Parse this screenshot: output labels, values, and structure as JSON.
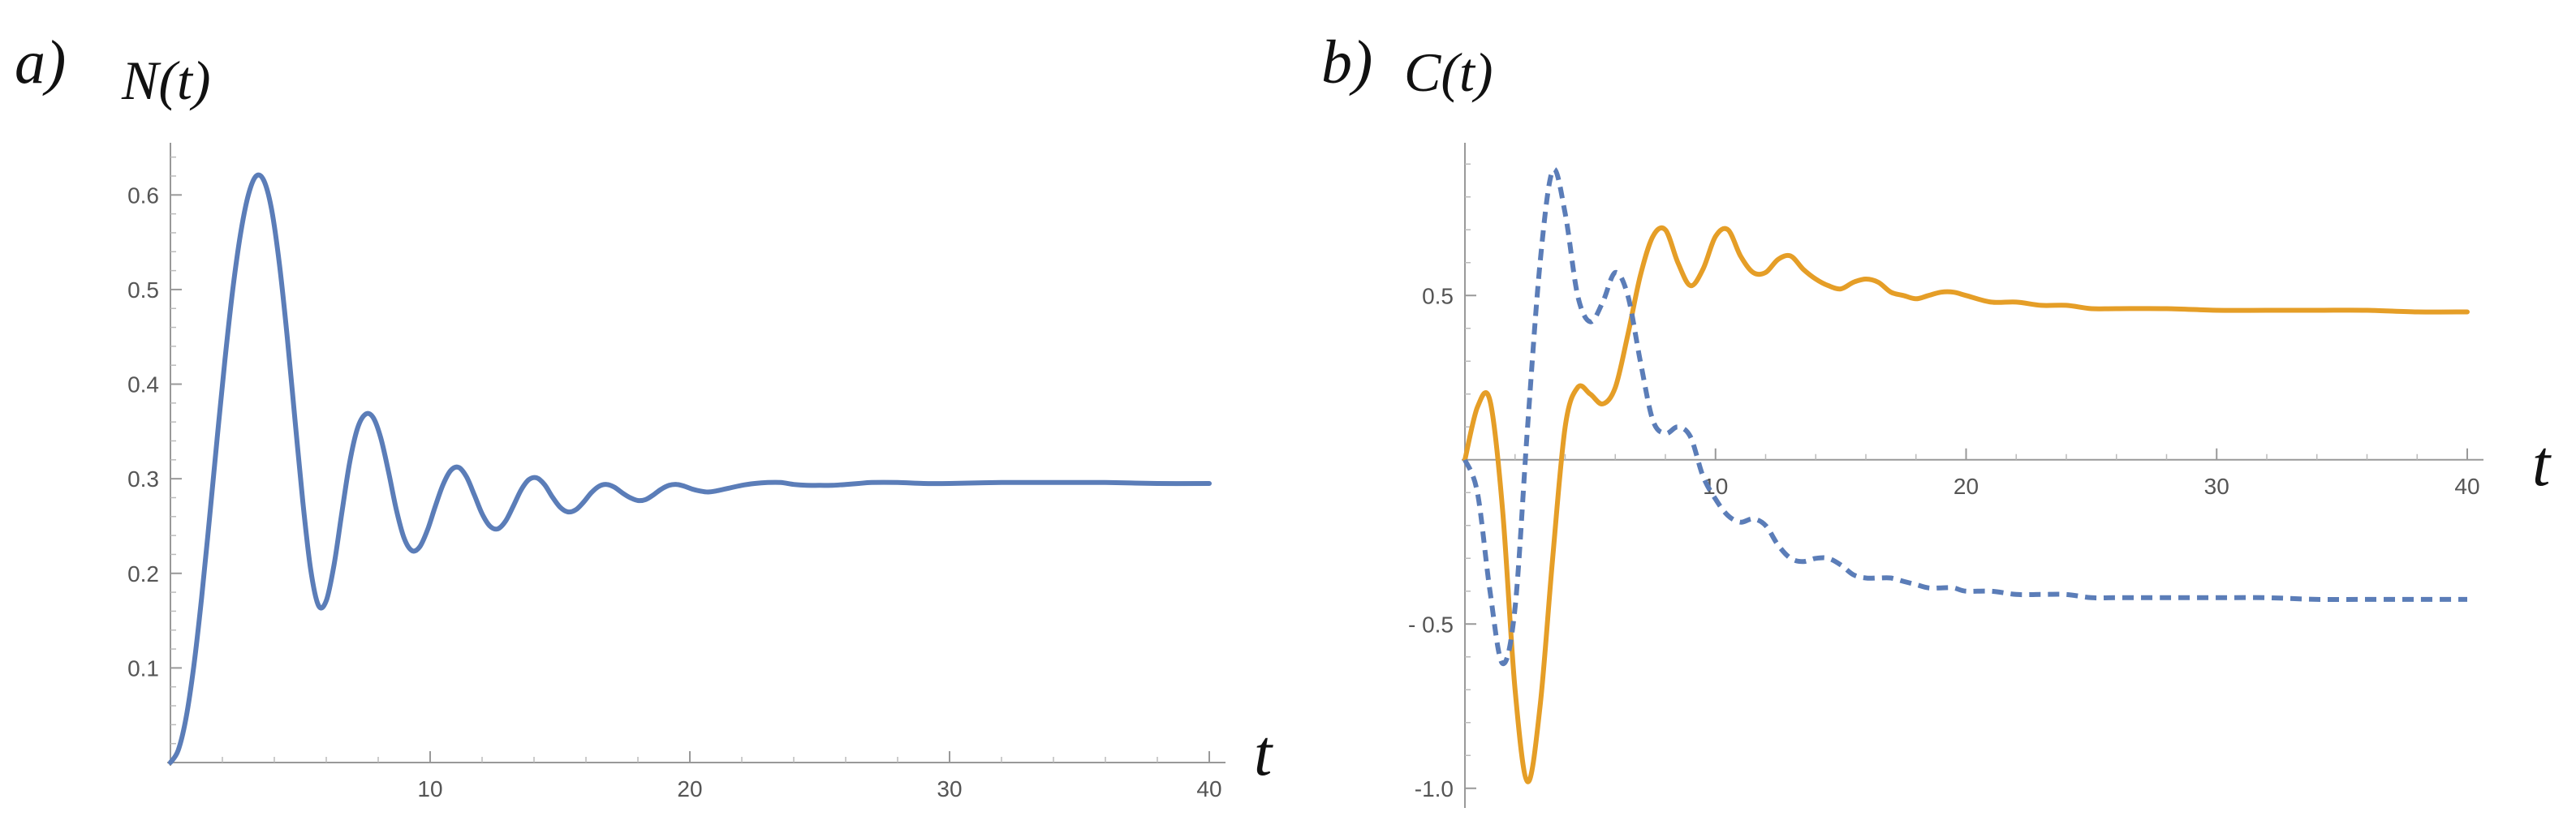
{
  "colors": {
    "blue": "#5b7db8",
    "orange": "#e59e27",
    "axis": "#999999"
  },
  "chart_data": [
    {
      "type": "line",
      "panel_label": "a)",
      "ylabel": "N(t)",
      "xlabel": "t",
      "xlim": [
        0,
        40
      ],
      "ylim": [
        0,
        0.65
      ],
      "xticks": [
        "10",
        "20",
        "30",
        "40"
      ],
      "yticks": [
        "0.1",
        "0.2",
        "0.3",
        "0.4",
        "0.5",
        "0.6"
      ],
      "series": [
        {
          "color": "#5b7db8",
          "dash": false,
          "x": [
            0,
            0.3,
            0.6,
            0.9,
            1.2,
            1.5,
            1.8,
            2.1,
            2.4,
            2.7,
            3.0,
            3.3,
            3.6,
            3.9,
            4.2,
            4.5,
            4.8,
            5.1,
            5.4,
            5.7,
            6.0,
            6.3,
            6.6,
            6.9,
            7.2,
            7.5,
            7.8,
            8.1,
            8.4,
            8.7,
            9.0,
            9.3,
            9.6,
            9.9,
            10.2,
            10.5,
            10.8,
            11.1,
            11.4,
            11.7,
            12.0,
            12.3,
            12.6,
            12.9,
            13.2,
            13.5,
            13.8,
            14.1,
            14.4,
            14.7,
            15.0,
            15.3,
            15.6,
            15.9,
            16.2,
            16.5,
            16.8,
            17.1,
            17.4,
            17.7,
            18.0,
            18.3,
            18.6,
            18.9,
            19.2,
            19.5,
            19.8,
            20.1,
            20.4,
            20.7,
            21.0,
            21.5,
            22.0,
            22.5,
            23.0,
            23.5,
            24.0,
            24.5,
            25.0,
            25.5,
            26.0,
            26.5,
            27.0,
            28,
            29,
            30,
            32,
            34,
            36,
            38,
            40
          ],
          "y": [
            0.0,
            0.013,
            0.047,
            0.102,
            0.174,
            0.257,
            0.343,
            0.426,
            0.5,
            0.559,
            0.6,
            0.62,
            0.615,
            0.584,
            0.526,
            0.449,
            0.361,
            0.275,
            0.204,
            0.166,
            0.171,
            0.209,
            0.264,
            0.317,
            0.353,
            0.368,
            0.365,
            0.343,
            0.307,
            0.267,
            0.237,
            0.224,
            0.228,
            0.246,
            0.271,
            0.294,
            0.309,
            0.312,
            0.302,
            0.283,
            0.263,
            0.25,
            0.247,
            0.255,
            0.271,
            0.288,
            0.299,
            0.301,
            0.294,
            0.281,
            0.27,
            0.265,
            0.267,
            0.275,
            0.285,
            0.292,
            0.294,
            0.291,
            0.285,
            0.28,
            0.277,
            0.278,
            0.283,
            0.289,
            0.293,
            0.294,
            0.292,
            0.289,
            0.287,
            0.286,
            0.287,
            0.29,
            0.293,
            0.295,
            0.296,
            0.296,
            0.294,
            0.293,
            0.293,
            0.293,
            0.294,
            0.295,
            0.296,
            0.296,
            0.295,
            0.295,
            0.296,
            0.296,
            0.296,
            0.295,
            0.295
          ]
        }
      ]
    },
    {
      "type": "line",
      "panel_label": "b)",
      "ylabel": "C(t)",
      "xlabel": "t",
      "xlim": [
        0,
        40
      ],
      "ylim": [
        -1.05,
        0.95
      ],
      "xticks": [
        "10",
        "20",
        "30",
        "40"
      ],
      "yticks": [
        "0.5",
        "- 0.5",
        "-1.0"
      ],
      "series": [
        {
          "color": "#e59e27",
          "dash": false,
          "x": [
            0,
            0.5,
            1.0,
            1.5,
            2.0,
            2.5,
            3.0,
            3.5,
            4.0,
            4.5,
            5.0,
            5.5,
            6.0,
            6.5,
            7.0,
            7.5,
            8.0,
            8.5,
            9.0,
            9.5,
            10.0,
            10.5,
            11.0,
            11.5,
            12.0,
            12.5,
            13.0,
            13.5,
            14.0,
            14.5,
            15.0,
            15.5,
            16.0,
            16.5,
            17.0,
            17.5,
            18.0,
            18.5,
            19.0,
            19.5,
            20.0,
            21.0,
            22.0,
            23.0,
            24.0,
            25.0,
            26.0,
            28.0,
            30.0,
            32.0,
            34.0,
            36.0,
            38.0,
            40.0
          ],
          "x_note": "",
          "y": [
            0.0,
            0.16,
            0.18,
            -0.15,
            -0.7,
            -0.98,
            -0.75,
            -0.3,
            0.1,
            0.22,
            0.2,
            0.17,
            0.22,
            0.38,
            0.56,
            0.68,
            0.7,
            0.6,
            0.53,
            0.58,
            0.68,
            0.7,
            0.62,
            0.57,
            0.57,
            0.61,
            0.62,
            0.58,
            0.55,
            0.53,
            0.52,
            0.54,
            0.55,
            0.54,
            0.51,
            0.5,
            0.49,
            0.5,
            0.51,
            0.51,
            0.5,
            0.48,
            0.48,
            0.47,
            0.47,
            0.46,
            0.46,
            0.46,
            0.455,
            0.455,
            0.455,
            0.455,
            0.45,
            0.45
          ]
        },
        {
          "color": "#5b7db8",
          "dash": true,
          "x": [
            0,
            0.5,
            1.0,
            1.5,
            2.0,
            2.5,
            3.0,
            3.5,
            4.0,
            4.5,
            5.0,
            5.5,
            6.0,
            6.5,
            7.0,
            7.5,
            8.0,
            8.5,
            9.0,
            9.5,
            10.0,
            10.5,
            11.0,
            11.5,
            12.0,
            12.5,
            13.0,
            13.5,
            14.0,
            14.5,
            15.0,
            15.5,
            16.0,
            16.5,
            17.0,
            17.5,
            18.0,
            18.5,
            19.0,
            19.5,
            20.0,
            21.0,
            22.0,
            23.0,
            24.0,
            25.0,
            26.0,
            28.0,
            30.0,
            32.0,
            34.0,
            36.0,
            38.0,
            40.0
          ],
          "y": [
            0.0,
            -0.1,
            -0.4,
            -0.62,
            -0.45,
            0.1,
            0.6,
            0.88,
            0.75,
            0.5,
            0.42,
            0.48,
            0.57,
            0.5,
            0.3,
            0.12,
            0.08,
            0.1,
            0.07,
            -0.05,
            -0.12,
            -0.17,
            -0.19,
            -0.18,
            -0.2,
            -0.26,
            -0.3,
            -0.31,
            -0.3,
            -0.3,
            -0.32,
            -0.35,
            -0.36,
            -0.36,
            -0.36,
            -0.37,
            -0.38,
            -0.39,
            -0.39,
            -0.39,
            -0.4,
            -0.4,
            -0.41,
            -0.41,
            -0.41,
            -0.42,
            -0.42,
            -0.42,
            -0.42,
            -0.42,
            -0.425,
            -0.425,
            -0.425,
            -0.425
          ]
        }
      ]
    }
  ]
}
